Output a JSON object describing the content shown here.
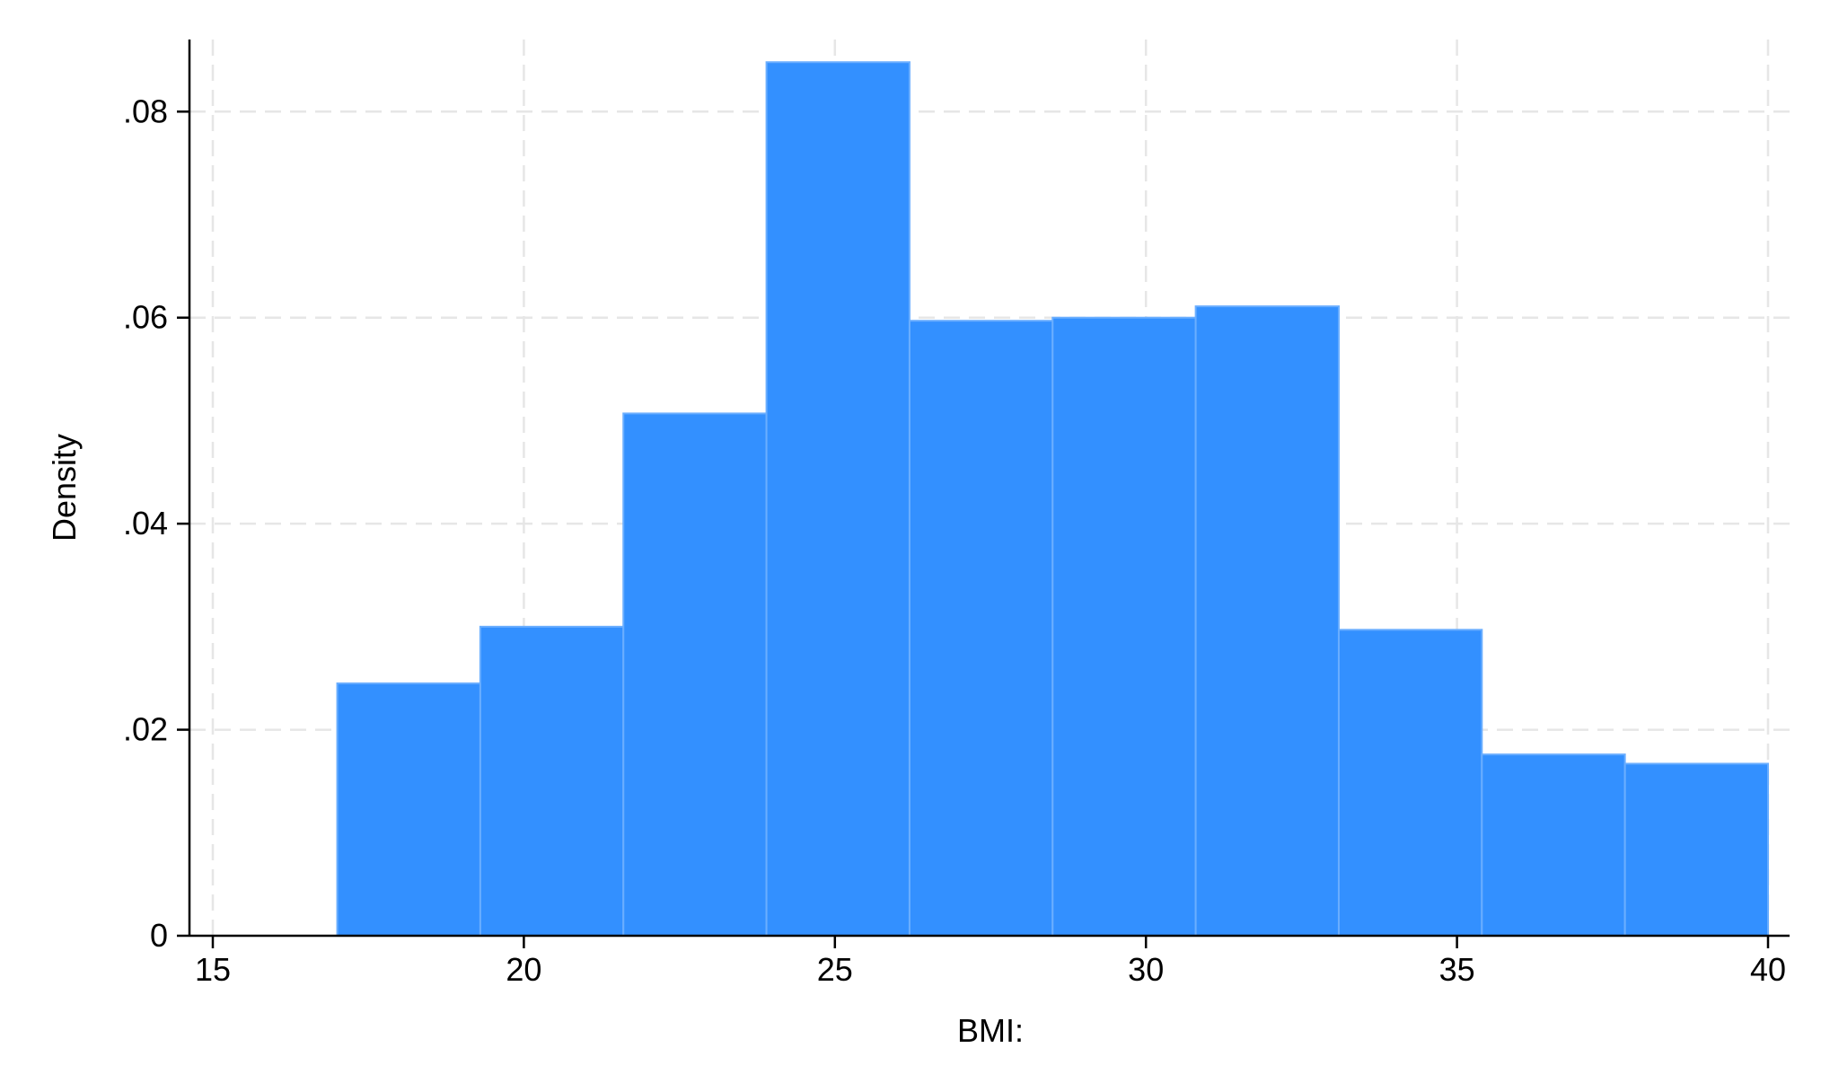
{
  "chart_data": {
    "type": "bar",
    "subtype": "histogram",
    "xlabel": "BMI:",
    "ylabel": "Density",
    "xlim": [
      15,
      40
    ],
    "ylim": [
      0,
      0.087
    ],
    "grid": true,
    "legend": "none",
    "colors": {
      "bar_fill": "#3390ff",
      "bar_edge": "#6aaeff",
      "grid": "#e6e6e6",
      "axis": "#000000"
    },
    "xticks": [
      {
        "value": 15,
        "label": "15"
      },
      {
        "value": 20,
        "label": "20"
      },
      {
        "value": 25,
        "label": "25"
      },
      {
        "value": 30,
        "label": "30"
      },
      {
        "value": 35,
        "label": "35"
      },
      {
        "value": 40,
        "label": "40"
      }
    ],
    "yticks": [
      {
        "value": 0,
        "label": "0"
      },
      {
        "value": 0.02,
        "label": ".02"
      },
      {
        "value": 0.04,
        "label": ".04"
      },
      {
        "value": 0.06,
        "label": ".06"
      },
      {
        "value": 0.08,
        "label": ".08"
      }
    ],
    "bins": [
      {
        "start": 17.0,
        "end": 19.3,
        "value": 0.0245
      },
      {
        "start": 19.3,
        "end": 21.6,
        "value": 0.03
      },
      {
        "start": 21.6,
        "end": 23.9,
        "value": 0.0507
      },
      {
        "start": 23.9,
        "end": 26.2,
        "value": 0.0848
      },
      {
        "start": 26.2,
        "end": 28.5,
        "value": 0.0597
      },
      {
        "start": 28.5,
        "end": 30.8,
        "value": 0.06
      },
      {
        "start": 30.8,
        "end": 33.1,
        "value": 0.0611
      },
      {
        "start": 33.1,
        "end": 35.4,
        "value": 0.0297
      },
      {
        "start": 35.4,
        "end": 37.7,
        "value": 0.0176
      },
      {
        "start": 37.7,
        "end": 40.0,
        "value": 0.0167
      }
    ]
  }
}
